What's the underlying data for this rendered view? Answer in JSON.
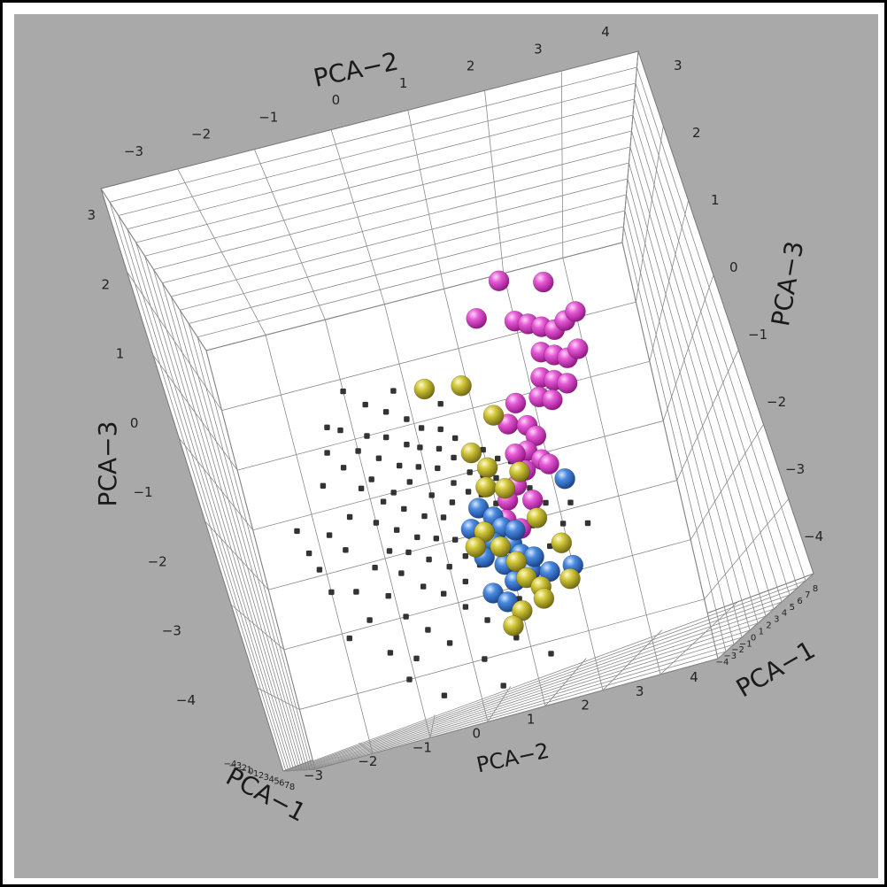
{
  "chart_data": {
    "type": "scatter",
    "dimensions": 3,
    "title": "",
    "background_color": "#a9a9a9",
    "panel_color": "#ffffff",
    "grid": true,
    "axes": {
      "x": {
        "label": "PCA−2",
        "range": [
          -3,
          4
        ],
        "ticks": [
          "−3",
          "−2",
          "−1",
          "0",
          "1",
          "2",
          "3",
          "4"
        ]
      },
      "y": {
        "label": "PCA−3",
        "range": [
          -4,
          3
        ],
        "ticks": [
          "−4",
          "−3",
          "−2",
          "−1",
          "0",
          "1",
          "2",
          "3"
        ]
      },
      "z": {
        "label": "PCA−1",
        "range": [
          -4,
          8
        ],
        "ticks": [
          "−4",
          "−3",
          "−2",
          "−1",
          "0",
          "1",
          "2",
          "3",
          "4",
          "5",
          "6",
          "7",
          "8"
        ]
      }
    },
    "axis_labels": {
      "top": "PCA−2",
      "bottom": "PCA−2",
      "left": "PCA−3",
      "right": "PCA−3",
      "depth_left": "PCA−1",
      "depth_right": "PCA−1"
    },
    "series": [
      {
        "color": "#333333",
        "marker": "small-cube",
        "points": [
          [
            -2.3,
            -0.2
          ],
          [
            -2.2,
            -0.6
          ],
          [
            -2.1,
            -0.9
          ],
          [
            -2.0,
            -1.3
          ],
          [
            -1.9,
            -2.1
          ],
          [
            -1.8,
            -0.4
          ],
          [
            -1.7,
            0.4
          ],
          [
            -1.6,
            -0.7
          ],
          [
            -1.5,
            0.9
          ],
          [
            -1.5,
            -1.9
          ],
          [
            -1.4,
            1.3
          ],
          [
            -1.4,
            -0.2
          ],
          [
            -1.3,
            0.6
          ],
          [
            -1.3,
            -2.5
          ],
          [
            -1.2,
            1.2
          ],
          [
            -1.2,
            -1.1
          ],
          [
            -1.1,
            0.2
          ],
          [
            -1.1,
            -1.6
          ],
          [
            -1.0,
            0.8
          ],
          [
            -1.0,
            -0.4
          ],
          [
            -1.0,
            1.8
          ],
          [
            -0.9,
            -0.9
          ],
          [
            -0.9,
            0.3
          ],
          [
            -0.9,
            -2.0
          ],
          [
            -0.8,
            1.0
          ],
          [
            -0.8,
            -0.1
          ],
          [
            -0.8,
            -1.3
          ],
          [
            -0.7,
            0.6
          ],
          [
            -0.7,
            -0.6
          ],
          [
            -0.7,
            1.5
          ],
          [
            -0.6,
            0.0
          ],
          [
            -0.6,
            -1.0
          ],
          [
            -0.6,
            -2.3
          ],
          [
            -0.5,
            0.9
          ],
          [
            -0.5,
            -0.3
          ],
          [
            -0.5,
            -1.6
          ],
          [
            -0.4,
            0.4
          ],
          [
            -0.4,
            -0.8
          ],
          [
            -0.4,
            1.3
          ],
          [
            -0.3,
            0.1
          ],
          [
            -0.3,
            -1.2
          ],
          [
            -0.3,
            -2.6
          ],
          [
            -0.2,
            0.7
          ],
          [
            -0.2,
            -0.5
          ],
          [
            -0.2,
            -1.8
          ],
          [
            -0.1,
            0.3
          ],
          [
            -0.1,
            -0.9
          ],
          [
            -0.1,
            1.1
          ],
          [
            0.0,
            -0.2
          ],
          [
            0.0,
            -1.4
          ],
          [
            0.0,
            0.6
          ],
          [
            0.1,
            -0.6
          ],
          [
            0.1,
            0.9
          ],
          [
            0.1,
            -2.1
          ],
          [
            0.2,
            0.2
          ],
          [
            0.2,
            -1.0
          ],
          [
            0.2,
            -1.7
          ],
          [
            0.3,
            0.5
          ],
          [
            0.3,
            -0.4
          ],
          [
            0.3,
            -1.3
          ],
          [
            0.4,
            0.8
          ],
          [
            0.4,
            -0.1
          ],
          [
            0.4,
            -2.4
          ],
          [
            0.5,
            0.3
          ],
          [
            0.5,
            -0.8
          ],
          [
            0.5,
            -1.5
          ],
          [
            0.6,
            0.6
          ],
          [
            0.6,
            -0.3
          ],
          [
            0.6,
            -1.1
          ],
          [
            0.7,
            0.0
          ],
          [
            0.7,
            -0.7
          ],
          [
            0.7,
            -2.0
          ],
          [
            0.8,
            0.4
          ],
          [
            0.8,
            -0.4
          ],
          [
            0.8,
            -1.6
          ],
          [
            0.9,
            -0.1
          ],
          [
            0.9,
            -1.0
          ],
          [
            1.0,
            0.3
          ],
          [
            1.0,
            -0.6
          ],
          [
            1.0,
            -2.2
          ],
          [
            1.1,
            -0.2
          ],
          [
            1.1,
            -1.3
          ],
          [
            1.2,
            0.1
          ],
          [
            1.2,
            -0.9
          ],
          [
            1.3,
            -0.4
          ],
          [
            1.3,
            -1.8
          ],
          [
            1.4,
            0.0
          ],
          [
            1.5,
            -1.1
          ],
          [
            1.6,
            -0.5
          ],
          [
            1.7,
            -1.5
          ],
          [
            1.8,
            -0.8
          ],
          [
            2.0,
            -1.2
          ],
          [
            2.2,
            -0.9
          ],
          [
            2.4,
            -1.3
          ],
          [
            -0.6,
            -3.4
          ],
          [
            0.2,
            -3.0
          ],
          [
            0.8,
            -2.8
          ],
          [
            1.3,
            -3.2
          ],
          [
            -1.1,
            -3.0
          ],
          [
            0.4,
            -3.5
          ],
          [
            -0.2,
            1.6
          ],
          [
            0.5,
            1.2
          ],
          [
            -1.6,
            -1.4
          ],
          [
            -0.9,
            -2.7
          ]
        ]
      },
      {
        "color": "#e23fcf",
        "marker": "sphere",
        "points": [
          [
            1.9,
            2.9
          ],
          [
            2.6,
            2.7
          ],
          [
            1.4,
            2.4
          ],
          [
            2.0,
            2.2
          ],
          [
            2.2,
            2.1
          ],
          [
            2.4,
            2.0
          ],
          [
            2.6,
            1.9
          ],
          [
            2.8,
            2.0
          ],
          [
            3.0,
            2.1
          ],
          [
            2.3,
            1.6
          ],
          [
            2.5,
            1.5
          ],
          [
            2.7,
            1.4
          ],
          [
            2.9,
            1.5
          ],
          [
            2.2,
            1.2
          ],
          [
            2.4,
            1.1
          ],
          [
            2.6,
            1.0
          ],
          [
            2.1,
            0.9
          ],
          [
            2.3,
            0.8
          ],
          [
            1.7,
            0.9
          ],
          [
            1.5,
            0.6
          ],
          [
            1.8,
            0.5
          ],
          [
            1.9,
            0.3
          ],
          [
            1.7,
            0.1
          ],
          [
            1.9,
            -0.1
          ],
          [
            1.6,
            -0.2
          ],
          [
            1.4,
            -0.4
          ],
          [
            1.2,
            -0.6
          ],
          [
            2.0,
            -0.2
          ],
          [
            1.5,
            0.1
          ],
          [
            1.1,
            -0.9
          ],
          [
            1.3,
            -1.1
          ],
          [
            1.6,
            -0.7
          ]
        ]
      },
      {
        "color": "#3a78d0",
        "marker": "sphere",
        "points": [
          [
            0.7,
            -0.6
          ],
          [
            0.9,
            -0.8
          ],
          [
            1.0,
            -1.0
          ],
          [
            1.1,
            -1.3
          ],
          [
            1.2,
            -1.5
          ],
          [
            0.8,
            -1.2
          ],
          [
            0.6,
            -1.4
          ],
          [
            1.3,
            -1.8
          ],
          [
            0.9,
            -1.6
          ],
          [
            1.0,
            -1.9
          ],
          [
            1.4,
            -1.6
          ],
          [
            1.6,
            -1.9
          ],
          [
            0.6,
            -2.0
          ],
          [
            0.8,
            -2.2
          ],
          [
            2.0,
            -1.9
          ],
          [
            2.2,
            -0.5
          ],
          [
            1.2,
            -1.1
          ],
          [
            0.5,
            -0.9
          ]
        ]
      },
      {
        "color": "#c8be2a",
        "marker": "sphere",
        "points": [
          [
            0.3,
            1.5
          ],
          [
            0.9,
            1.4
          ],
          [
            1.3,
            0.8
          ],
          [
            0.8,
            0.3
          ],
          [
            1.0,
            0.0
          ],
          [
            0.9,
            -0.3
          ],
          [
            1.2,
            -0.4
          ],
          [
            1.5,
            -0.2
          ],
          [
            0.7,
            -1.0
          ],
          [
            0.9,
            -1.3
          ],
          [
            1.1,
            -1.6
          ],
          [
            1.2,
            -1.9
          ],
          [
            1.4,
            -2.1
          ],
          [
            1.0,
            -2.4
          ],
          [
            0.8,
            -2.6
          ],
          [
            1.4,
            -2.3
          ],
          [
            1.9,
            -1.5
          ],
          [
            1.9,
            -2.1
          ],
          [
            0.5,
            -1.2
          ],
          [
            1.6,
            -1.0
          ]
        ]
      }
    ]
  }
}
